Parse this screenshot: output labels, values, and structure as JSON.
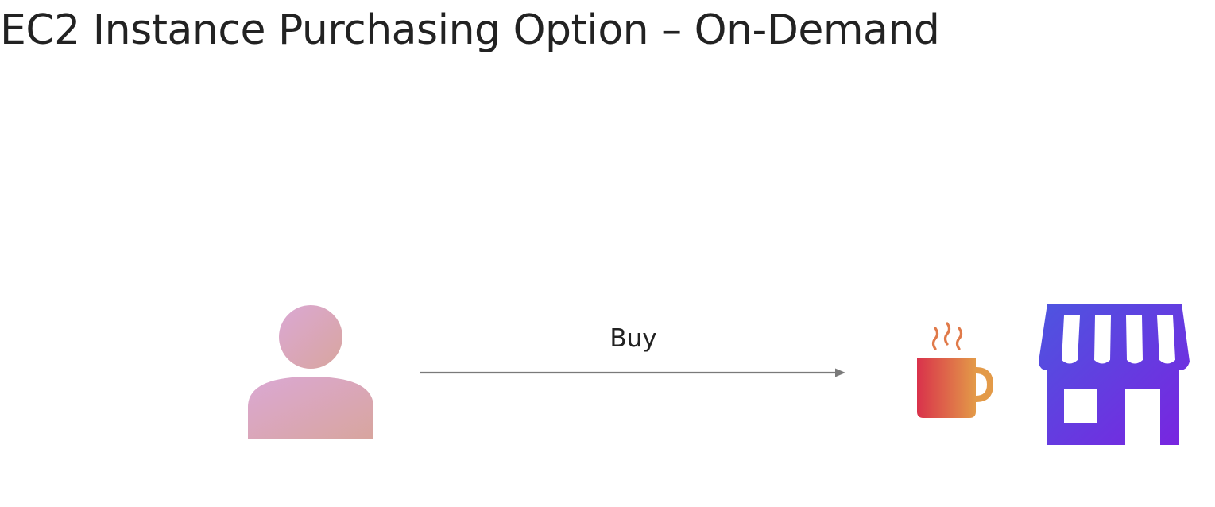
{
  "slide": {
    "title": "EC2 Instance Purchasing Option – On-Demand"
  },
  "diagram": {
    "arrow_label": "Buy",
    "nodes": [
      {
        "id": "customer",
        "icon": "person-icon"
      },
      {
        "id": "coffee",
        "icon": "coffee-cup-icon"
      },
      {
        "id": "store",
        "icon": "storefront-icon"
      }
    ]
  },
  "colors": {
    "title_text": "#222222",
    "arrow": "#7a7a7a",
    "person_gradient_start": "#dba8d4",
    "person_gradient_end": "#d8a59e",
    "cup_gradient_start": "#d9324b",
    "cup_gradient_end": "#e39a48",
    "steam": "#e07a4a",
    "store_gradient_start": "#4d55e0",
    "store_gradient_end": "#7a24e0"
  }
}
